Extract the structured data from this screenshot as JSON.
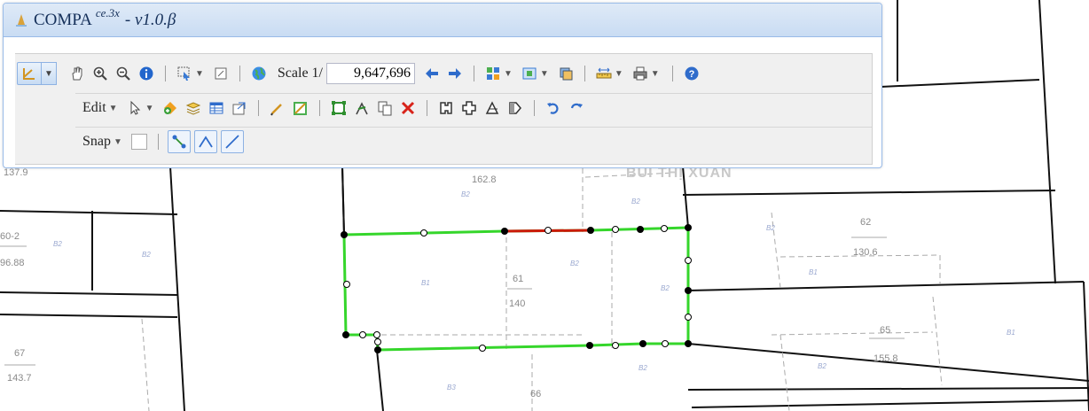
{
  "window": {
    "title": "COMPA",
    "title_sup": "ce.3x",
    "title_version": "- v1.0.β"
  },
  "toolbar": {
    "scale_label": "Scale 1/",
    "scale_value": "9,647,696",
    "edit_label": "Edit",
    "snap_label": "Snap"
  },
  "map": {
    "street_label": "BÙI THỊ XUÂN",
    "parcel_labels": [
      {
        "text": "137.9"
      },
      {
        "text": "162.8"
      },
      {
        "text": "60-2"
      },
      {
        "text": "96.88"
      },
      {
        "text": "61"
      },
      {
        "text": "140"
      },
      {
        "text": "62"
      },
      {
        "text": "130.6"
      },
      {
        "text": "67"
      },
      {
        "text": "143.7"
      },
      {
        "text": "65"
      },
      {
        "text": "155.8"
      },
      {
        "text": "66"
      }
    ],
    "zone_labels": [
      "B2",
      "B2",
      "B2",
      "B1",
      "B2",
      "B2",
      "B1",
      "B2",
      "B3",
      "B2",
      "B1",
      "B2",
      "B2"
    ]
  },
  "colors": {
    "selection_edge": "#35d62b",
    "highlight_edge": "#cc1a0a",
    "title_bg": "#dfeaf7",
    "toolbar_bg": "#f0f0f0"
  },
  "icons": [
    "draw-icon",
    "pan-icon",
    "zoom-in-icon",
    "zoom-out-icon",
    "info-icon",
    "select-icon",
    "extent-icon",
    "globe-icon",
    "arrow-left-icon",
    "arrow-right-icon",
    "layout-icon",
    "map-icon",
    "layers-icon",
    "measure-icon",
    "print-icon",
    "help-icon"
  ]
}
